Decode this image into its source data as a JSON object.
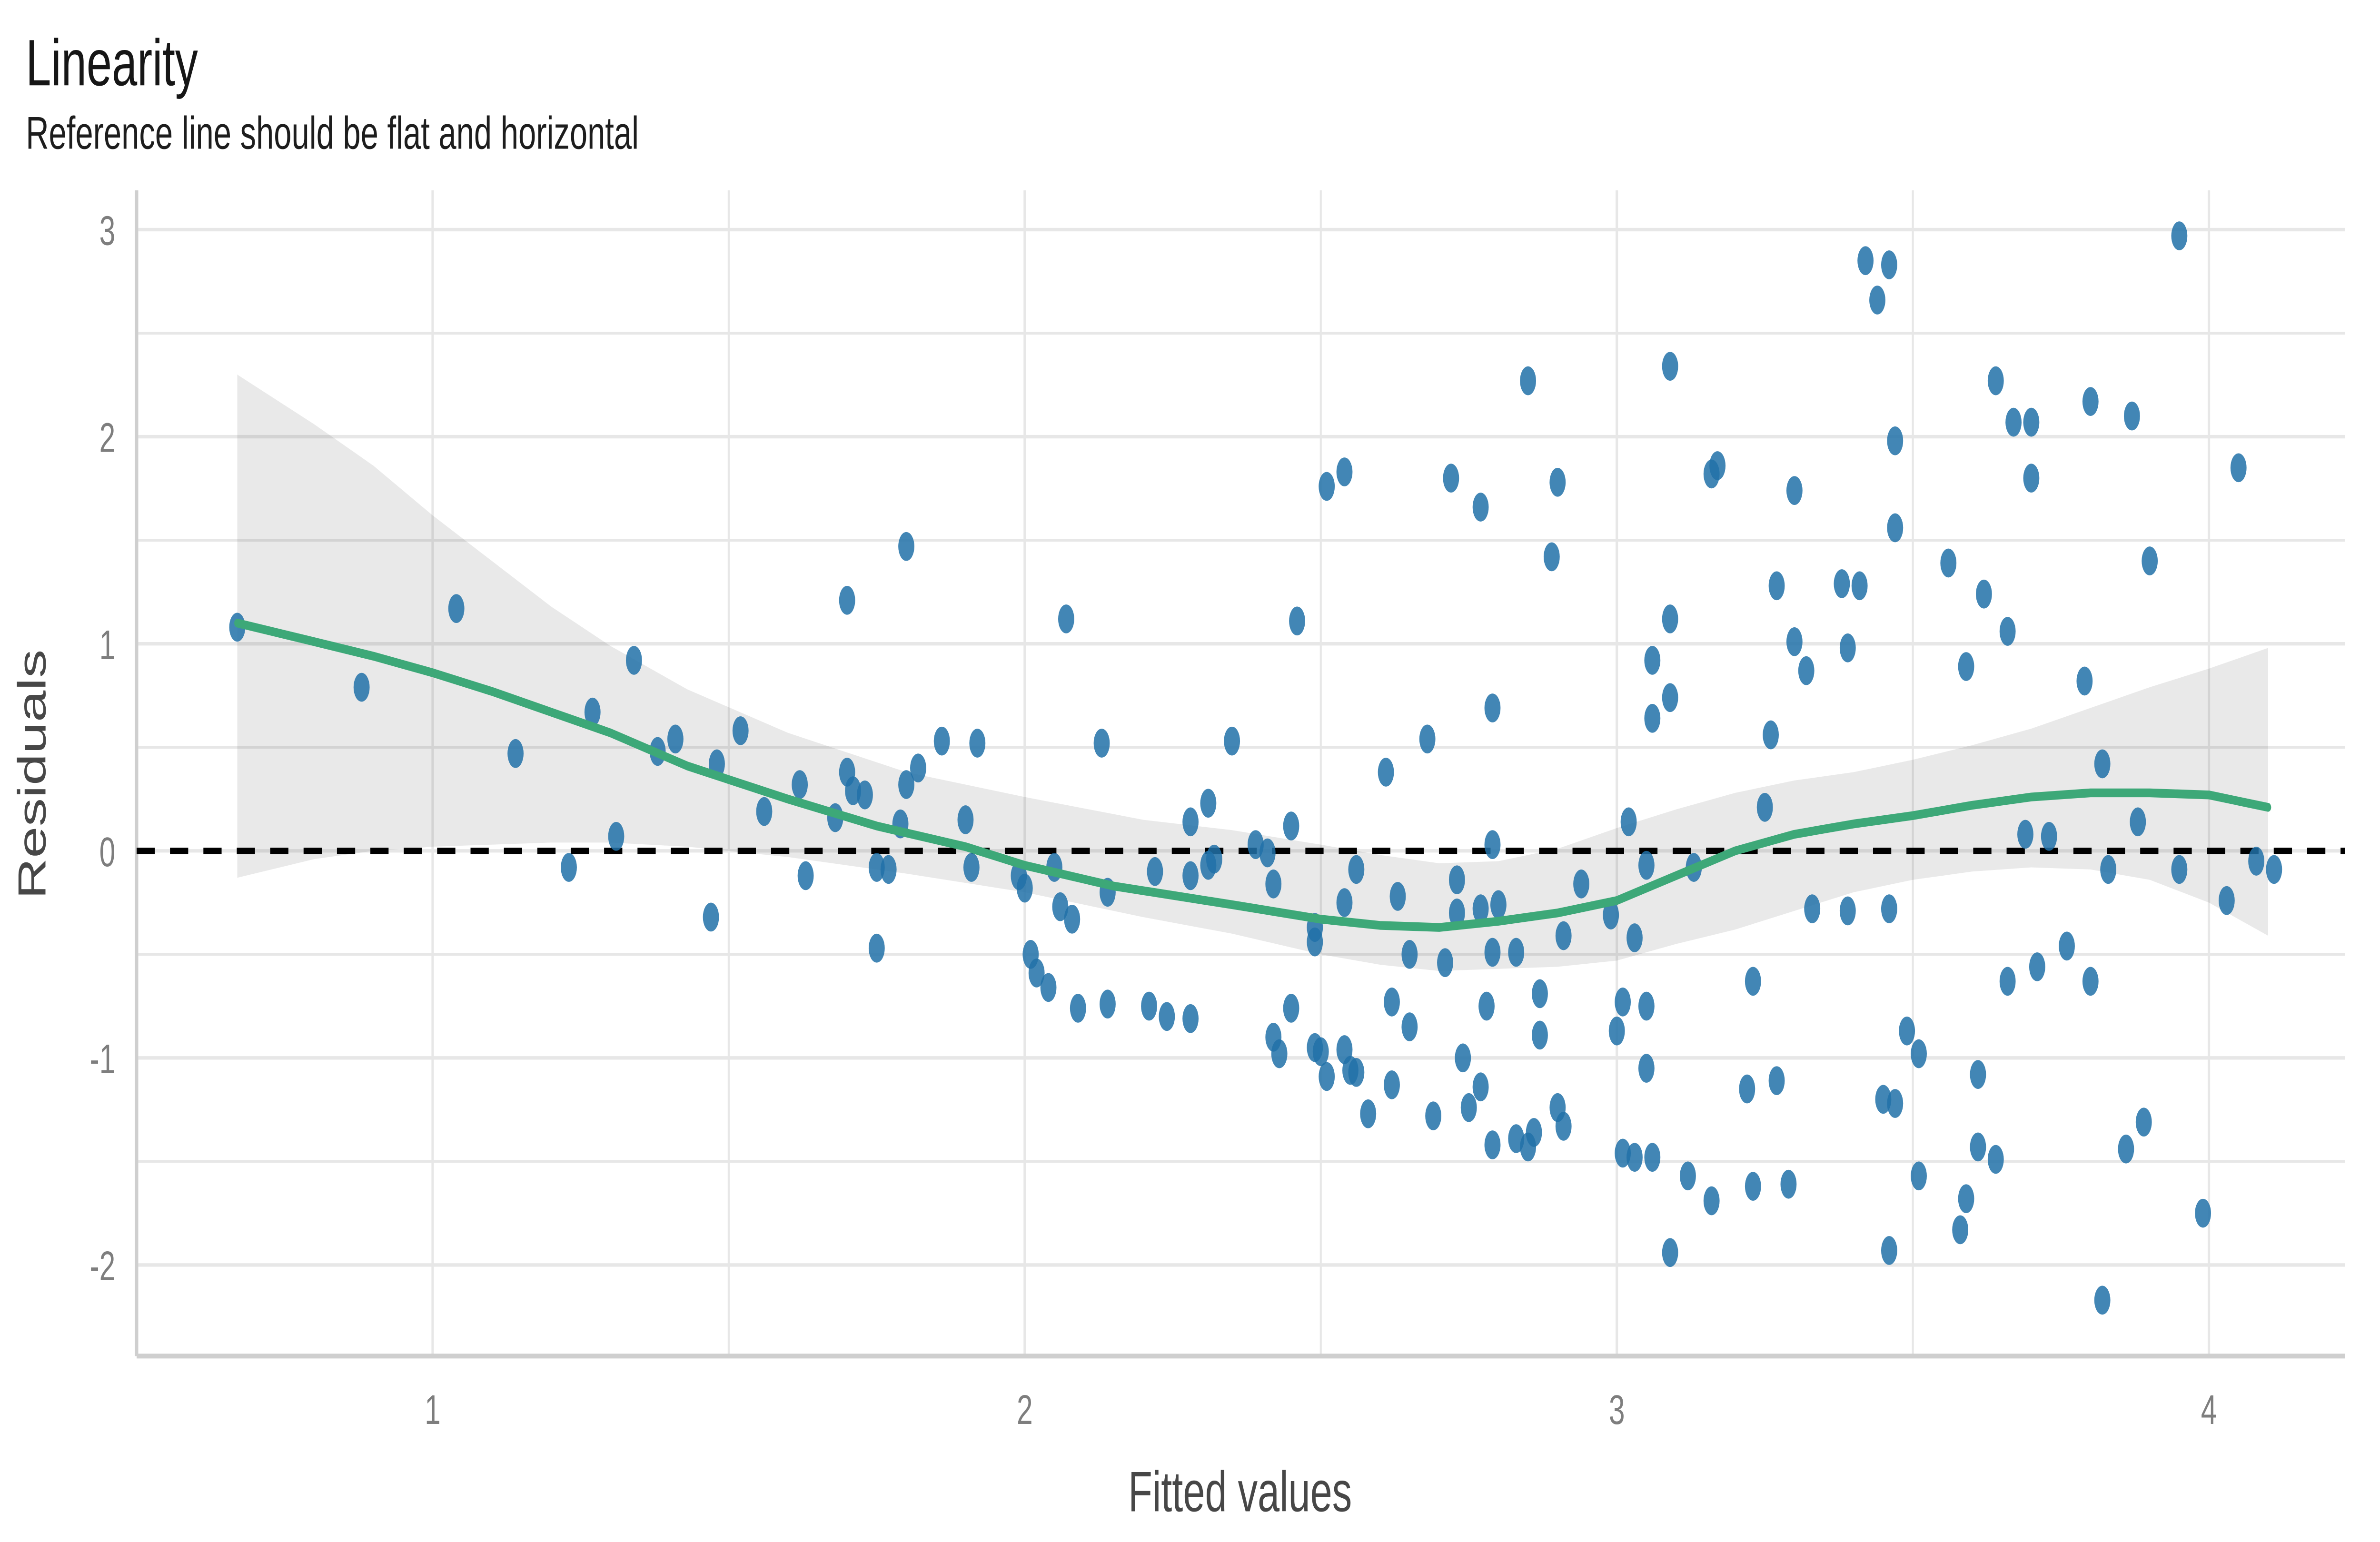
{
  "chart_data": {
    "type": "scatter",
    "title": "Linearity",
    "subtitle": "Reference line should be flat and horizontal",
    "xlabel": "Fitted values",
    "ylabel": "Residuals",
    "xlim": [
      0.5,
      4.23
    ],
    "ylim": [
      -2.44,
      3.19
    ],
    "x_ticks": [
      1,
      2,
      3,
      4
    ],
    "y_ticks": [
      -2,
      -1,
      0,
      1,
      2,
      3
    ],
    "grid_step": 0.5,
    "grid_on": true,
    "legend_position": "none",
    "reference_line_y": 0,
    "colors": {
      "point": "#2171a8",
      "point_opacity": 0.85,
      "smooth_line": "#3da878",
      "band": "#000000",
      "band_opacity": 0.085,
      "grid": "#e7e7e7",
      "axis_line": "#cfcfcf",
      "reference_line": "#000000",
      "tick_text": "#7e7e7e",
      "axis_title_text": "#474747",
      "title_text": "#161616"
    },
    "points": [
      [
        0.67,
        1.08
      ],
      [
        0.88,
        0.79
      ],
      [
        1.04,
        1.17
      ],
      [
        1.14,
        0.47
      ],
      [
        1.23,
        -0.08
      ],
      [
        1.27,
        0.67
      ],
      [
        1.31,
        0.07
      ],
      [
        1.34,
        0.92
      ],
      [
        1.38,
        0.48
      ],
      [
        1.41,
        0.54
      ],
      [
        1.47,
        -0.32
      ],
      [
        1.48,
        0.42
      ],
      [
        1.52,
        0.58
      ],
      [
        1.56,
        0.19
      ],
      [
        1.62,
        0.32
      ],
      [
        1.63,
        -0.12
      ],
      [
        1.68,
        0.16
      ],
      [
        1.7,
        1.21
      ],
      [
        1.7,
        0.38
      ],
      [
        1.71,
        0.29
      ],
      [
        1.73,
        0.27
      ],
      [
        1.75,
        -0.08
      ],
      [
        1.75,
        -0.47
      ],
      [
        1.77,
        -0.09
      ],
      [
        1.79,
        0.13
      ],
      [
        1.8,
        0.32
      ],
      [
        1.8,
        1.47
      ],
      [
        1.82,
        0.4
      ],
      [
        1.86,
        0.53
      ],
      [
        1.9,
        0.15
      ],
      [
        1.91,
        -0.08
      ],
      [
        1.92,
        0.52
      ],
      [
        1.99,
        -0.12
      ],
      [
        2.0,
        -0.18
      ],
      [
        2.01,
        -0.5
      ],
      [
        2.02,
        -0.59
      ],
      [
        2.04,
        -0.66
      ],
      [
        2.05,
        -0.08
      ],
      [
        2.06,
        -0.27
      ],
      [
        2.07,
        1.12
      ],
      [
        2.08,
        -0.33
      ],
      [
        2.09,
        -0.76
      ],
      [
        2.13,
        0.52
      ],
      [
        2.14,
        -0.2
      ],
      [
        2.14,
        -0.74
      ],
      [
        2.21,
        -0.75
      ],
      [
        2.22,
        -0.1
      ],
      [
        2.24,
        -0.8
      ],
      [
        2.28,
        0.14
      ],
      [
        2.28,
        -0.12
      ],
      [
        2.28,
        -0.81
      ],
      [
        2.31,
        0.23
      ],
      [
        2.31,
        -0.07
      ],
      [
        2.32,
        -0.04
      ],
      [
        2.35,
        0.53
      ],
      [
        2.39,
        0.03
      ],
      [
        2.41,
        -0.01
      ],
      [
        2.42,
        -0.16
      ],
      [
        2.42,
        -0.9
      ],
      [
        2.43,
        -0.98
      ],
      [
        2.45,
        0.12
      ],
      [
        2.45,
        -0.76
      ],
      [
        2.46,
        1.11
      ],
      [
        2.49,
        -0.37
      ],
      [
        2.49,
        -0.44
      ],
      [
        2.49,
        -0.95
      ],
      [
        2.5,
        -0.97
      ],
      [
        2.51,
        1.76
      ],
      [
        2.51,
        -1.09
      ],
      [
        2.54,
        1.83
      ],
      [
        2.54,
        -0.25
      ],
      [
        2.54,
        -0.96
      ],
      [
        2.55,
        -1.06
      ],
      [
        2.56,
        -0.09
      ],
      [
        2.56,
        -1.07
      ],
      [
        2.58,
        -1.27
      ],
      [
        2.61,
        0.38
      ],
      [
        2.62,
        -0.73
      ],
      [
        2.62,
        -1.13
      ],
      [
        2.63,
        -0.22
      ],
      [
        2.65,
        -0.5
      ],
      [
        2.65,
        -0.85
      ],
      [
        2.68,
        0.54
      ],
      [
        2.69,
        -1.28
      ],
      [
        2.71,
        -0.54
      ],
      [
        2.72,
        1.8
      ],
      [
        2.73,
        -0.14
      ],
      [
        2.73,
        -0.3
      ],
      [
        2.74,
        -1.0
      ],
      [
        2.75,
        -1.24
      ],
      [
        2.77,
        1.66
      ],
      [
        2.77,
        -0.28
      ],
      [
        2.77,
        -1.14
      ],
      [
        2.78,
        -0.75
      ],
      [
        2.79,
        0.69
      ],
      [
        2.79,
        0.03
      ],
      [
        2.79,
        -0.49
      ],
      [
        2.79,
        -1.42
      ],
      [
        2.8,
        -0.26
      ],
      [
        2.83,
        -0.49
      ],
      [
        2.83,
        -1.39
      ],
      [
        2.85,
        2.27
      ],
      [
        2.85,
        -1.43
      ],
      [
        2.86,
        -1.36
      ],
      [
        2.87,
        -0.69
      ],
      [
        2.87,
        -0.89
      ],
      [
        2.89,
        1.42
      ],
      [
        2.9,
        1.78
      ],
      [
        2.9,
        -1.24
      ],
      [
        2.91,
        -0.41
      ],
      [
        2.91,
        -1.33
      ],
      [
        2.94,
        -0.16
      ],
      [
        2.99,
        -0.31
      ],
      [
        3.0,
        -0.87
      ],
      [
        3.01,
        -0.73
      ],
      [
        3.01,
        -1.46
      ],
      [
        3.02,
        0.14
      ],
      [
        3.03,
        -1.48
      ],
      [
        3.03,
        -0.42
      ],
      [
        3.05,
        -0.07
      ],
      [
        3.05,
        -0.75
      ],
      [
        3.05,
        -1.05
      ],
      [
        3.06,
        0.92
      ],
      [
        3.06,
        0.64
      ],
      [
        3.06,
        -1.48
      ],
      [
        3.09,
        2.34
      ],
      [
        3.09,
        1.12
      ],
      [
        3.09,
        0.74
      ],
      [
        3.09,
        -1.94
      ],
      [
        3.12,
        -1.57
      ],
      [
        3.13,
        -0.08
      ],
      [
        3.16,
        1.82
      ],
      [
        3.16,
        -1.69
      ],
      [
        3.17,
        1.86
      ],
      [
        3.22,
        -1.15
      ],
      [
        3.23,
        -1.62
      ],
      [
        3.23,
        -0.63
      ],
      [
        3.25,
        0.21
      ],
      [
        3.26,
        0.56
      ],
      [
        3.27,
        1.28
      ],
      [
        3.27,
        -1.11
      ],
      [
        3.29,
        -1.61
      ],
      [
        3.3,
        1.74
      ],
      [
        3.3,
        1.01
      ],
      [
        3.32,
        0.87
      ],
      [
        3.33,
        -0.28
      ],
      [
        3.38,
        1.29
      ],
      [
        3.39,
        0.98
      ],
      [
        3.39,
        -0.29
      ],
      [
        3.41,
        1.28
      ],
      [
        3.42,
        2.85
      ],
      [
        3.44,
        2.66
      ],
      [
        3.45,
        -1.2
      ],
      [
        3.46,
        2.83
      ],
      [
        3.46,
        -0.28
      ],
      [
        3.46,
        -1.93
      ],
      [
        3.47,
        1.98
      ],
      [
        3.47,
        1.56
      ],
      [
        3.47,
        -1.22
      ],
      [
        3.49,
        -0.87
      ],
      [
        3.51,
        -0.98
      ],
      [
        3.51,
        -1.57
      ],
      [
        3.56,
        1.39
      ],
      [
        3.58,
        -1.83
      ],
      [
        3.59,
        0.89
      ],
      [
        3.59,
        -1.68
      ],
      [
        3.61,
        -1.08
      ],
      [
        3.61,
        -1.43
      ],
      [
        3.62,
        1.24
      ],
      [
        3.64,
        2.27
      ],
      [
        3.64,
        -1.49
      ],
      [
        3.66,
        1.06
      ],
      [
        3.66,
        -0.63
      ],
      [
        3.67,
        2.07
      ],
      [
        3.69,
        0.08
      ],
      [
        3.7,
        2.07
      ],
      [
        3.7,
        1.8
      ],
      [
        3.71,
        -0.56
      ],
      [
        3.73,
        0.07
      ],
      [
        3.76,
        -0.46
      ],
      [
        3.79,
        0.82
      ],
      [
        3.8,
        2.17
      ],
      [
        3.8,
        -0.63
      ],
      [
        3.82,
        0.42
      ],
      [
        3.82,
        -2.17
      ],
      [
        3.83,
        -0.09
      ],
      [
        3.86,
        -1.44
      ],
      [
        3.87,
        2.1
      ],
      [
        3.88,
        0.14
      ],
      [
        3.89,
        -1.31
      ],
      [
        3.9,
        1.4
      ],
      [
        3.95,
        -0.09
      ],
      [
        3.95,
        2.97
      ],
      [
        3.99,
        -1.75
      ],
      [
        4.03,
        -0.24
      ],
      [
        4.05,
        1.85
      ],
      [
        4.08,
        -0.05
      ],
      [
        4.11,
        -0.09
      ]
    ],
    "smooth_line": [
      [
        0.67,
        1.1
      ],
      [
        0.8,
        1.01
      ],
      [
        0.9,
        0.94
      ],
      [
        1.0,
        0.86
      ],
      [
        1.1,
        0.77
      ],
      [
        1.2,
        0.67
      ],
      [
        1.3,
        0.57
      ],
      [
        1.43,
        0.41
      ],
      [
        1.6,
        0.25
      ],
      [
        1.75,
        0.12
      ],
      [
        1.9,
        0.02
      ],
      [
        2.0,
        -0.07
      ],
      [
        2.15,
        -0.17
      ],
      [
        2.35,
        -0.26
      ],
      [
        2.5,
        -0.33
      ],
      [
        2.6,
        -0.36
      ],
      [
        2.7,
        -0.37
      ],
      [
        2.8,
        -0.34
      ],
      [
        2.9,
        -0.3
      ],
      [
        3.0,
        -0.24
      ],
      [
        3.1,
        -0.12
      ],
      [
        3.2,
        0.0
      ],
      [
        3.3,
        0.08
      ],
      [
        3.4,
        0.13
      ],
      [
        3.5,
        0.17
      ],
      [
        3.6,
        0.22
      ],
      [
        3.7,
        0.26
      ],
      [
        3.8,
        0.28
      ],
      [
        3.9,
        0.28
      ],
      [
        4.0,
        0.27
      ],
      [
        4.1,
        0.21
      ]
    ],
    "band_upper": [
      [
        0.67,
        2.3
      ],
      [
        0.8,
        2.06
      ],
      [
        0.9,
        1.86
      ],
      [
        1.0,
        1.62
      ],
      [
        1.1,
        1.4
      ],
      [
        1.2,
        1.18
      ],
      [
        1.3,
        0.99
      ],
      [
        1.43,
        0.78
      ],
      [
        1.6,
        0.57
      ],
      [
        1.8,
        0.38
      ],
      [
        2.0,
        0.26
      ],
      [
        2.2,
        0.15
      ],
      [
        2.35,
        0.1
      ],
      [
        2.5,
        0.03
      ],
      [
        2.6,
        -0.02
      ],
      [
        2.7,
        -0.06
      ],
      [
        2.8,
        -0.05
      ],
      [
        2.9,
        0.01
      ],
      [
        3.0,
        0.11
      ],
      [
        3.1,
        0.2
      ],
      [
        3.2,
        0.28
      ],
      [
        3.3,
        0.34
      ],
      [
        3.4,
        0.38
      ],
      [
        3.5,
        0.44
      ],
      [
        3.6,
        0.51
      ],
      [
        3.7,
        0.59
      ],
      [
        3.8,
        0.69
      ],
      [
        3.9,
        0.79
      ],
      [
        4.0,
        0.88
      ],
      [
        4.1,
        0.98
      ]
    ],
    "band_lower": [
      [
        0.67,
        -0.13
      ],
      [
        0.8,
        -0.04
      ],
      [
        0.9,
        0.0
      ],
      [
        1.0,
        0.02
      ],
      [
        1.1,
        0.03
      ],
      [
        1.2,
        0.04
      ],
      [
        1.3,
        0.04
      ],
      [
        1.43,
        0.02
      ],
      [
        1.6,
        -0.03
      ],
      [
        1.8,
        -0.11
      ],
      [
        2.0,
        -0.2
      ],
      [
        2.2,
        -0.32
      ],
      [
        2.35,
        -0.4
      ],
      [
        2.5,
        -0.5
      ],
      [
        2.6,
        -0.55
      ],
      [
        2.7,
        -0.58
      ],
      [
        2.8,
        -0.57
      ],
      [
        2.9,
        -0.56
      ],
      [
        3.0,
        -0.53
      ],
      [
        3.1,
        -0.45
      ],
      [
        3.2,
        -0.38
      ],
      [
        3.3,
        -0.29
      ],
      [
        3.4,
        -0.2
      ],
      [
        3.5,
        -0.14
      ],
      [
        3.6,
        -0.1
      ],
      [
        3.7,
        -0.08
      ],
      [
        3.8,
        -0.09
      ],
      [
        3.9,
        -0.14
      ],
      [
        4.0,
        -0.25
      ],
      [
        4.1,
        -0.41
      ]
    ]
  }
}
